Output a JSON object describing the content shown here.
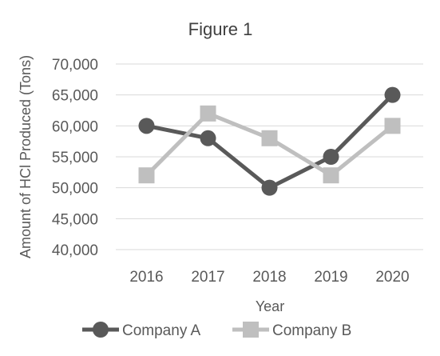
{
  "chart_data": {
    "type": "line",
    "title": "Figure 1",
    "xlabel": "Year",
    "ylabel": "Amount of HCl Produced (Tons)",
    "categories": [
      "2016",
      "2017",
      "2018",
      "2019",
      "2020"
    ],
    "ylim": [
      40000,
      70000
    ],
    "yticks": [
      40000,
      45000,
      50000,
      55000,
      60000,
      65000,
      70000
    ],
    "ytick_labels": [
      "40,000",
      "45,000",
      "50,000",
      "55,000",
      "60,000",
      "65,000",
      "70,000"
    ],
    "grid": true,
    "legend_position": "bottom",
    "series": [
      {
        "name": "Company A",
        "values": [
          60000,
          58000,
          50000,
          55000,
          65000
        ],
        "color": "#595959",
        "marker": "circle"
      },
      {
        "name": "Company B",
        "values": [
          52000,
          62000,
          58000,
          52000,
          60000
        ],
        "color": "#bfbfbf",
        "marker": "square"
      }
    ]
  }
}
